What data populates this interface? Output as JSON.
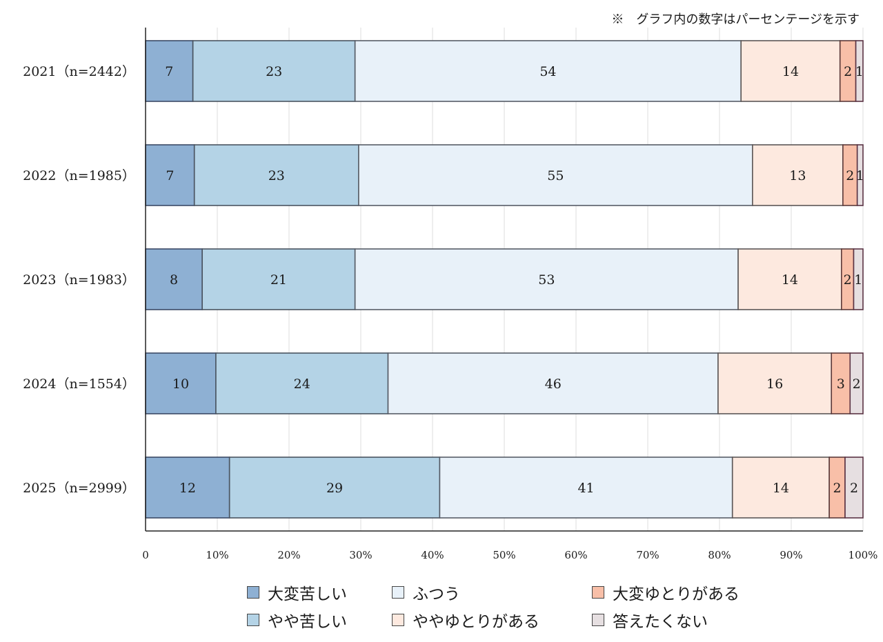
{
  "note": "※　グラフ内の数字はパーセンテージを示す",
  "chart_data": {
    "type": "bar",
    "orientation": "horizontal",
    "stacked": true,
    "categories": [
      "2021（n=2442）",
      "2022（n=1985）",
      "2023（n=1983）",
      "2024（n=1554）",
      "2025（n=2999）"
    ],
    "series": [
      {
        "name": "大変苦しい",
        "color": "#8eb0d3",
        "border": "#3b4a66",
        "values": [
          6.6,
          6.8,
          7.9,
          9.8,
          11.7
        ]
      },
      {
        "name": "やや苦しい",
        "color": "#b4d3e6",
        "border": "#4a5460",
        "values": [
          22.6,
          22.9,
          21.3,
          24.0,
          29.3
        ]
      },
      {
        "name": "ふつう",
        "color": "#e8f1f9",
        "border": "#565c66",
        "values": [
          53.8,
          54.9,
          53.4,
          46.0,
          40.8
        ]
      },
      {
        "name": "ややゆとりがある",
        "color": "#fde9df",
        "border": "#5b5656",
        "values": [
          13.8,
          12.6,
          14.4,
          15.8,
          13.5
        ]
      },
      {
        "name": "大変ゆとりがある",
        "color": "#f8bfa8",
        "border": "#5c3a3a",
        "values": [
          2.2,
          2.0,
          1.7,
          2.6,
          2.2
        ]
      },
      {
        "name": "答えたくない",
        "color": "#e6dfe1",
        "border": "#5a3344",
        "values": [
          1.0,
          0.8,
          1.3,
          1.8,
          2.5
        ]
      }
    ],
    "data_labels": [
      [
        "7",
        "23",
        "54",
        "14",
        "2",
        "1"
      ],
      [
        "7",
        "23",
        "55",
        "13",
        "2",
        "1"
      ],
      [
        "8",
        "21",
        "53",
        "14",
        "2",
        "1"
      ],
      [
        "10",
        "24",
        "46",
        "16",
        "3",
        "2"
      ],
      [
        "12",
        "29",
        "41",
        "14",
        "2",
        "2"
      ]
    ],
    "xlim": [
      0,
      100
    ],
    "xticks": [
      0,
      10,
      20,
      30,
      40,
      50,
      60,
      70,
      80,
      90,
      100
    ],
    "xtick_labels": [
      "0",
      "10%",
      "20%",
      "30%",
      "40%",
      "50%",
      "60%",
      "70%",
      "80%",
      "90%",
      "100%"
    ],
    "grid": true,
    "legend_position": "bottom"
  }
}
